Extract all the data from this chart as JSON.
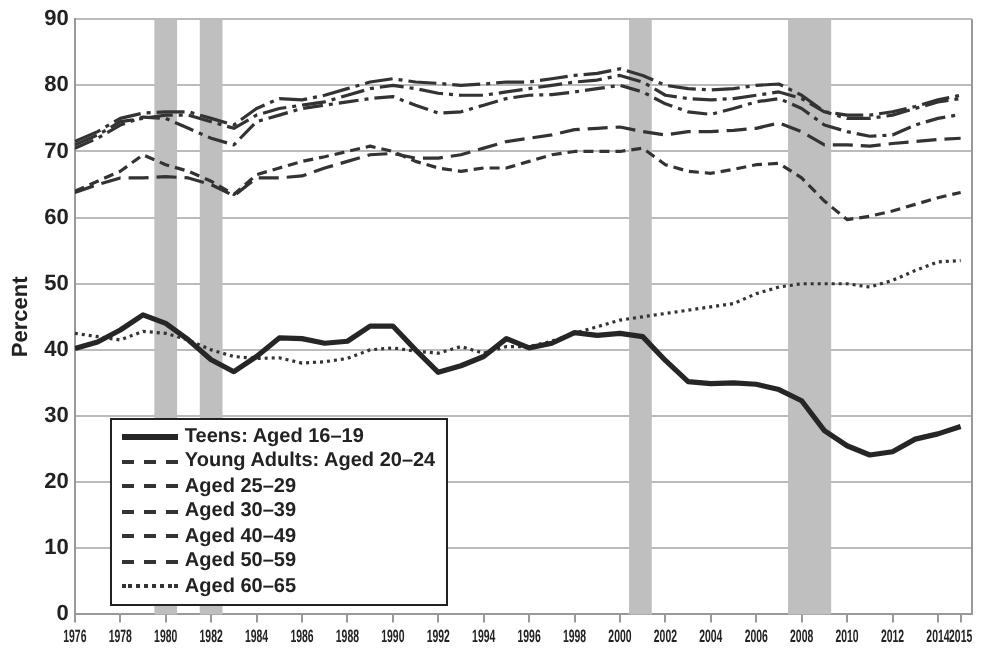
{
  "chart_data": {
    "type": "line",
    "ylabel": "Percent",
    "x": [
      1976,
      1977,
      1978,
      1979,
      1980,
      1981,
      1982,
      1983,
      1984,
      1985,
      1986,
      1987,
      1988,
      1989,
      1990,
      1991,
      1992,
      1993,
      1994,
      1995,
      1996,
      1997,
      1998,
      1999,
      2000,
      2001,
      2002,
      2003,
      2004,
      2005,
      2006,
      2007,
      2008,
      2009,
      2010,
      2011,
      2012,
      2013,
      2014,
      2015
    ],
    "series": [
      {
        "name": "Teens: Aged 16–19",
        "color": "#262626",
        "line_style": "solid",
        "values": [
          40.2,
          41.2,
          43,
          45.3,
          44,
          41.5,
          38.5,
          36.7,
          39,
          41.8,
          41.7,
          41,
          41.3,
          43.6,
          43.6,
          40,
          36.6,
          37.6,
          39,
          41.7,
          40.3,
          41,
          42.6,
          42.2,
          42.5,
          42,
          38.4,
          35.2,
          34.9,
          35,
          34.8,
          34,
          32.3,
          27.8,
          25.5,
          24.1,
          24.6,
          26.5,
          27.3,
          28.4
        ]
      },
      {
        "name": "Young Adults: Aged 20–24",
        "color": "#333333",
        "line_style": "dashed",
        "values": [
          64,
          65.5,
          67,
          69.5,
          68,
          67,
          65.5,
          63.5,
          66.5,
          67.5,
          68.5,
          69.2,
          70,
          70.8,
          70,
          68.5,
          67.5,
          67,
          67.5,
          67.5,
          68.5,
          69.5,
          70,
          70,
          70,
          70.5,
          68,
          67,
          66.7,
          67.3,
          68,
          68.2,
          66,
          62.5,
          59.7,
          60.2,
          61,
          62,
          63,
          63.8
        ]
      },
      {
        "name": "Aged 25–29",
        "color": "#333333",
        "line_style": "dashed",
        "values": [
          70.5,
          72,
          74,
          75.2,
          75,
          73.5,
          72,
          71,
          74.5,
          75.5,
          76.5,
          77,
          77.5,
          78,
          78.3,
          77,
          75.8,
          76,
          77,
          78,
          78.5,
          78.6,
          79,
          79.5,
          80,
          79,
          77.2,
          76,
          75.6,
          76.5,
          77.5,
          78,
          76.5,
          74,
          73,
          72.3,
          72.5,
          74,
          75,
          75.6
        ]
      },
      {
        "name": "Aged 30–39",
        "color": "#333333",
        "line_style": "dashed",
        "values": [
          71,
          72.5,
          74.5,
          75,
          75.5,
          75.5,
          74.5,
          73.5,
          75.5,
          76.5,
          77,
          77.5,
          78.5,
          79.5,
          80,
          79.5,
          78.8,
          78.5,
          78.5,
          79,
          79.5,
          80,
          80.5,
          80.8,
          81.5,
          80.5,
          78.5,
          78,
          77.8,
          78,
          78.5,
          79,
          78,
          76,
          75,
          75,
          75.5,
          76.5,
          77.5,
          78
        ]
      },
      {
        "name": "Aged 40–49",
        "color": "#333333",
        "line_style": "dashed",
        "values": [
          71.5,
          73,
          75,
          75.8,
          76,
          76,
          75,
          74,
          76.5,
          78,
          77.8,
          78.5,
          79.5,
          80.5,
          81,
          80.5,
          80.3,
          80,
          80.2,
          80.5,
          80.5,
          81,
          81.5,
          81.8,
          82.5,
          81.5,
          80,
          79.5,
          79.3,
          79.5,
          80,
          80.2,
          78.5,
          76,
          75.5,
          75.5,
          76,
          76.8,
          77.8,
          78.5
        ]
      },
      {
        "name": "Aged 50–59",
        "color": "#333333",
        "line_style": "dashed",
        "values": [
          63.8,
          65,
          66,
          66,
          66.2,
          66,
          65,
          63.3,
          66,
          66,
          66.3,
          67.5,
          68.5,
          69.5,
          69.7,
          69,
          69,
          69.5,
          70.5,
          71.5,
          72,
          72.5,
          73.3,
          73.5,
          73.7,
          73,
          72.5,
          73,
          73,
          73.2,
          73.5,
          74.3,
          73,
          71,
          71,
          70.8,
          71.2,
          71.5,
          71.8,
          72
        ]
      },
      {
        "name": "Aged 60–65",
        "color": "#333333",
        "line_style": "dotted",
        "values": [
          42.5,
          42,
          41.5,
          42.8,
          42.5,
          41.5,
          40,
          39,
          38.7,
          38.8,
          38,
          38.2,
          38.7,
          40,
          40.3,
          39.8,
          39.5,
          40.5,
          39.5,
          40.5,
          40.5,
          41.3,
          42.5,
          43.5,
          44.5,
          45,
          45.5,
          46,
          46.5,
          47,
          48.5,
          49.5,
          50,
          50,
          50,
          49.5,
          50.5,
          52,
          53.3,
          53.5
        ]
      }
    ],
    "xlim": [
      1976,
      2015.5
    ],
    "xticks": [
      1976,
      1978,
      1980,
      1982,
      1984,
      1986,
      1988,
      1990,
      1992,
      1994,
      1996,
      1998,
      2000,
      2002,
      2004,
      2006,
      2008,
      2010,
      2012,
      2014,
      2015
    ],
    "ylim": [
      0,
      90
    ],
    "yticks": [
      0,
      10,
      20,
      30,
      40,
      50,
      60,
      70,
      80,
      90
    ],
    "bands": [
      {
        "axis": "x",
        "from": 1979.5,
        "to": 1980.5,
        "color": "#bfbfbf"
      },
      {
        "axis": "x",
        "from": 1981.5,
        "to": 1982.5,
        "color": "#bfbfbf"
      },
      {
        "axis": "x",
        "from": 2000.4,
        "to": 2001.4,
        "color": "#bfbfbf"
      },
      {
        "axis": "x",
        "from": 2007.4,
        "to": 2009.3,
        "color": "#bfbfbf"
      }
    ],
    "grid": "y",
    "legend": "bottom left",
    "marker": "none"
  }
}
